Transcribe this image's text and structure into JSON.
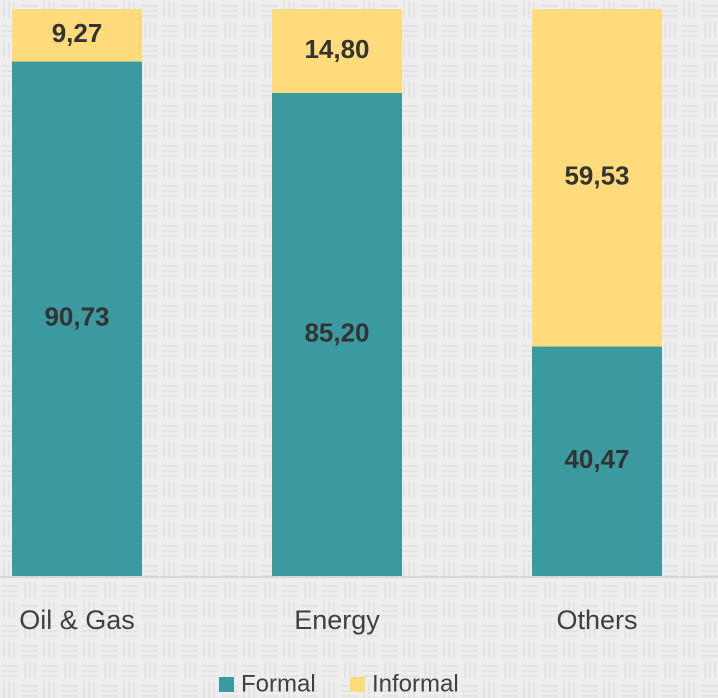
{
  "chart_data": {
    "type": "bar",
    "stacked": true,
    "categories": [
      "Oil & Gas",
      "Energy",
      "Others"
    ],
    "series": [
      {
        "name": "Formal",
        "color": "#3a9aa0",
        "values": [
          90.73,
          85.2,
          40.47
        ],
        "value_labels": [
          "90,73",
          "85,20",
          "40,47"
        ]
      },
      {
        "name": "Informal",
        "color": "#ffdb7b",
        "values": [
          9.27,
          14.8,
          59.53
        ],
        "value_labels": [
          "9,27",
          "14,80",
          "59,53"
        ]
      }
    ]
  }
}
